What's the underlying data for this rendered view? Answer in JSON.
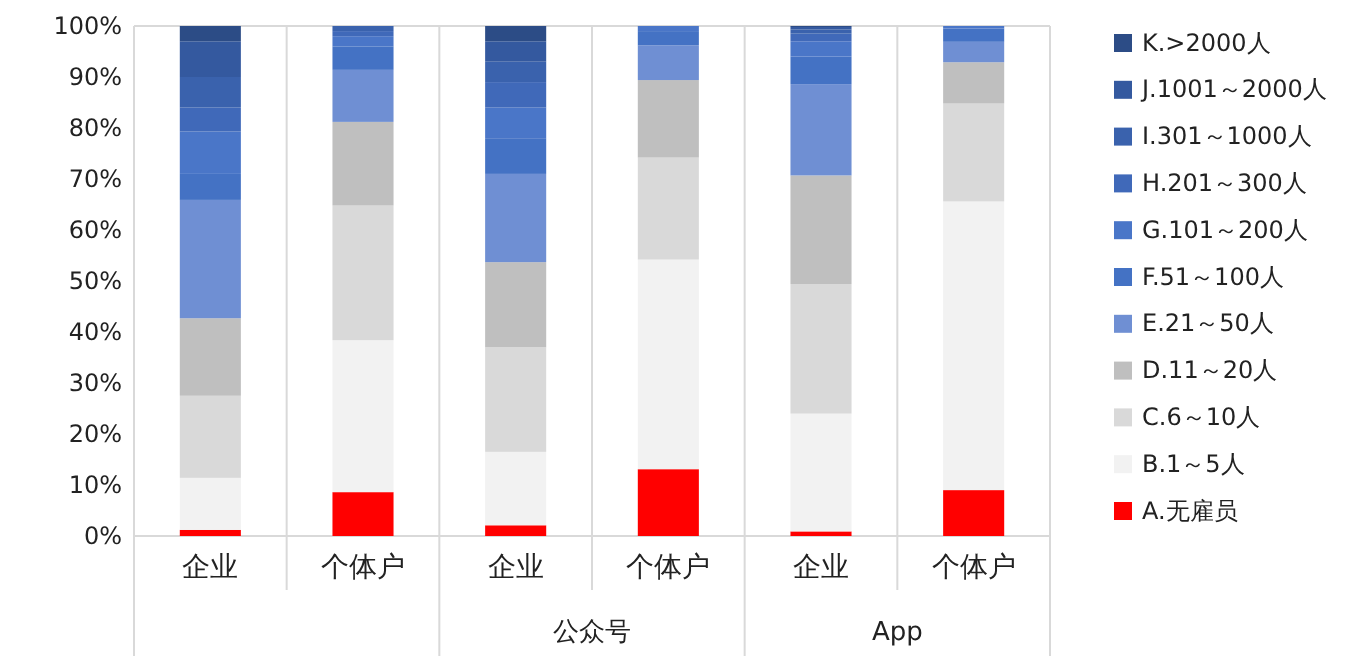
{
  "chart_data": {
    "type": "bar",
    "stacked": true,
    "categories": [
      "企业",
      "个体户",
      "企业",
      "个体户",
      "企业",
      "个体户"
    ],
    "annotations": [
      "公众号",
      "App"
    ],
    "series": [
      {
        "name": "A.无雇员",
        "color": "#ff0000",
        "values": [
          1.2,
          8.6,
          2.1,
          13.1,
          0.9,
          9.0
        ]
      },
      {
        "name": "B.1～5人",
        "color": "#f2f2f2",
        "values": [
          10.2,
          29.8,
          14.4,
          41.1,
          23.1,
          56.6
        ]
      },
      {
        "name": "C.6～10人",
        "color": "#d9d9d9",
        "values": [
          16.1,
          26.4,
          20.5,
          20.0,
          25.4,
          19.2
        ]
      },
      {
        "name": "D.11～20人",
        "color": "#bfbfbf",
        "values": [
          15.2,
          16.4,
          16.7,
          15.2,
          21.3,
          8.1
        ]
      },
      {
        "name": "E.21～50人",
        "color": "#6f8fd3",
        "values": [
          23.2,
          10.2,
          17.3,
          6.8,
          17.9,
          4.0
        ]
      },
      {
        "name": "F.51～100人",
        "color": "#4472c4",
        "values": [
          5.1,
          4.6,
          7.0,
          2.8,
          5.4,
          2.6
        ]
      },
      {
        "name": "G.101～200人",
        "color": "#4a76c8",
        "values": [
          8.3,
          2.0,
          6.0,
          1.0,
          3.0,
          0.5
        ]
      },
      {
        "name": "H.201～300人",
        "color": "#4069b9",
        "values": [
          4.7,
          1.0,
          5.0,
          0,
          1.5,
          0
        ]
      },
      {
        "name": "I.301～1000人",
        "color": "#3a62ad",
        "values": [
          6.0,
          1.0,
          4.0,
          0,
          0.8,
          0
        ]
      },
      {
        "name": "J.1001～2000人",
        "color": "#34599f",
        "values": [
          7.0,
          0,
          4.0,
          0,
          0.5,
          0
        ]
      },
      {
        "name": "K.>2000人",
        "color": "#2c4c86",
        "values": [
          3.0,
          0,
          3.0,
          0,
          0.2,
          0
        ]
      }
    ],
    "ylim": [
      0,
      100
    ],
    "yticks": [
      {
        "value": 0,
        "label": "0%"
      },
      {
        "value": 10,
        "label": "10%"
      },
      {
        "value": 20,
        "label": "20%"
      },
      {
        "value": 30,
        "label": "30%"
      },
      {
        "value": 40,
        "label": "40%"
      },
      {
        "value": 50,
        "label": "50%"
      },
      {
        "value": 60,
        "label": "60%"
      },
      {
        "value": 70,
        "label": "70%"
      },
      {
        "value": 80,
        "label": "80%"
      },
      {
        "value": 90,
        "label": "90%"
      },
      {
        "value": 100,
        "label": "100%"
      }
    ],
    "grid": false,
    "legend": "right"
  }
}
